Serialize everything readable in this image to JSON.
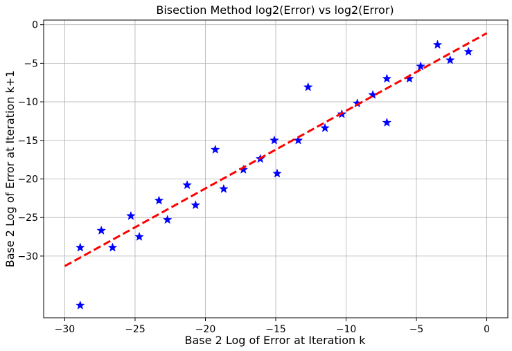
{
  "chart_data": {
    "type": "scatter",
    "title": "Bisection Method log2(Error) vs log2(Error)",
    "xlabel": "Base 2 Log of Error at Iteration k",
    "ylabel": "Base 2 Log of Error at Iteration k+1",
    "xlim": [
      -31.5,
      1.5
    ],
    "ylim": [
      -38,
      0.6
    ],
    "xticks": [
      -30,
      -25,
      -20,
      -15,
      -10,
      -5,
      0
    ],
    "yticks": [
      0,
      -5,
      -10,
      -15,
      -20,
      -25,
      -30
    ],
    "grid": true,
    "series": [
      {
        "type": "scatter",
        "marker": "star",
        "color": "#0000ff",
        "points": [
          {
            "x": -28.9,
            "y": -28.9
          },
          {
            "x": -28.9,
            "y": -36.4
          },
          {
            "x": -27.4,
            "y": -26.7
          },
          {
            "x": -26.6,
            "y": -28.9
          },
          {
            "x": -25.3,
            "y": -24.8
          },
          {
            "x": -24.7,
            "y": -27.5
          },
          {
            "x": -23.3,
            "y": -22.8
          },
          {
            "x": -22.7,
            "y": -25.3
          },
          {
            "x": -21.3,
            "y": -20.8
          },
          {
            "x": -20.7,
            "y": -23.4
          },
          {
            "x": -19.3,
            "y": -16.2
          },
          {
            "x": -18.7,
            "y": -21.3
          },
          {
            "x": -17.3,
            "y": -18.8
          },
          {
            "x": -16.1,
            "y": -17.4
          },
          {
            "x": -15.1,
            "y": -15.0
          },
          {
            "x": -14.9,
            "y": -19.3
          },
          {
            "x": -13.4,
            "y": -15.0
          },
          {
            "x": -12.7,
            "y": -8.1
          },
          {
            "x": -11.5,
            "y": -13.4
          },
          {
            "x": -10.3,
            "y": -11.6
          },
          {
            "x": -9.2,
            "y": -10.2
          },
          {
            "x": -8.1,
            "y": -9.1
          },
          {
            "x": -7.1,
            "y": -7.0
          },
          {
            "x": -7.1,
            "y": -12.7
          },
          {
            "x": -5.5,
            "y": -7.0
          },
          {
            "x": -4.7,
            "y": -5.4
          },
          {
            "x": -3.5,
            "y": -2.6
          },
          {
            "x": -2.6,
            "y": -4.6
          },
          {
            "x": -1.3,
            "y": -3.5
          }
        ]
      },
      {
        "type": "line",
        "style": "dashed",
        "color": "#ff0000",
        "points": [
          {
            "x": -30,
            "y": -31.3
          },
          {
            "x": 0,
            "y": -1.1
          }
        ]
      }
    ]
  }
}
